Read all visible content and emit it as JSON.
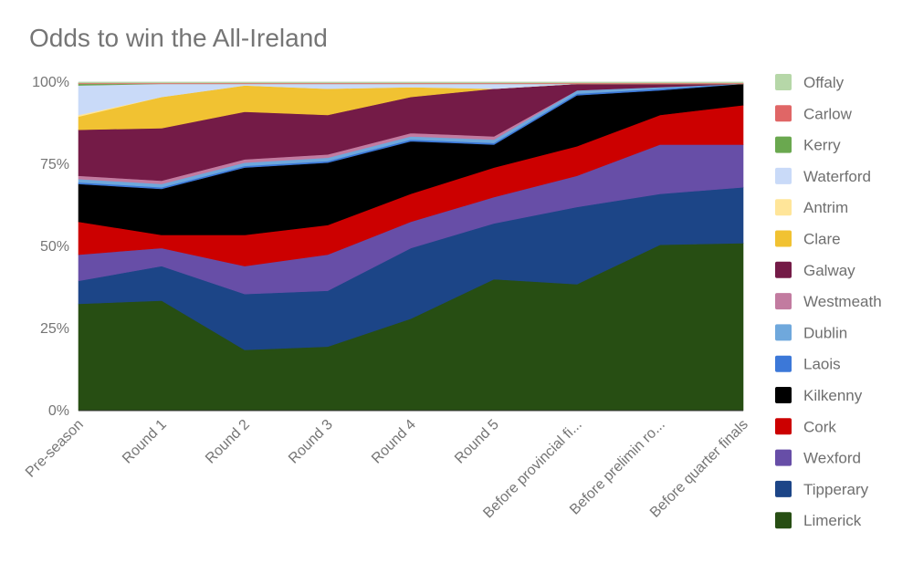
{
  "chart_data": {
    "type": "area",
    "stacked": "percent",
    "title": "Odds to win the All-Ireland",
    "xlabel": "",
    "ylabel": "",
    "categories": [
      "Pre-season",
      "Round 1",
      "Round 2",
      "Round 3",
      "Round 4",
      "Round 5",
      "Before provincial fi...",
      "Before prelimin ro...",
      "Before quarter finals"
    ],
    "y_ticks": [
      "0%",
      "25%",
      "50%",
      "75%",
      "100%"
    ],
    "ylim": [
      0,
      100
    ],
    "grid": true,
    "legend_position": "right",
    "series": [
      {
        "name": "Limerick",
        "color": "#274e13",
        "values": [
          32.5,
          33.5,
          18.5,
          19.5,
          28,
          40,
          38.5,
          50.5,
          51
        ]
      },
      {
        "name": "Tipperary",
        "color": "#1c4587",
        "values": [
          7,
          10.5,
          17,
          17,
          21.5,
          17,
          23.5,
          15.5,
          17
        ]
      },
      {
        "name": "Wexford",
        "color": "#674ea7",
        "values": [
          8,
          5.5,
          8.5,
          11,
          8,
          8,
          9.5,
          15,
          13
        ]
      },
      {
        "name": "Cork",
        "color": "#cc0000",
        "values": [
          10,
          4,
          9.5,
          9,
          8.5,
          9,
          9,
          9,
          12
        ]
      },
      {
        "name": "Kilkenny",
        "color": "#000000",
        "values": [
          11.5,
          14,
          20.5,
          19,
          16,
          7,
          15.5,
          7.5,
          6.5
        ]
      },
      {
        "name": "Laois",
        "color": "#3c78d8",
        "values": [
          0.5,
          0.5,
          0.5,
          0.5,
          0.5,
          0.5,
          0.5,
          0.5,
          0
        ]
      },
      {
        "name": "Dublin",
        "color": "#6fa8dc",
        "values": [
          1,
          1,
          1,
          1,
          1,
          1,
          1,
          0.5,
          0
        ]
      },
      {
        "name": "Westmeath",
        "color": "#c27ba0",
        "values": [
          1,
          1,
          1,
          1,
          1,
          1,
          0,
          0,
          0
        ]
      },
      {
        "name": "Galway",
        "color": "#741b47",
        "values": [
          14,
          16,
          14.5,
          12,
          11,
          14.5,
          2,
          1,
          0
        ]
      },
      {
        "name": "Clare",
        "color": "#f1c232",
        "values": [
          4,
          9.5,
          8,
          8,
          3,
          0,
          0,
          0,
          0
        ]
      },
      {
        "name": "Antrim",
        "color": "#ffe599",
        "values": [
          0.5,
          0,
          0,
          0,
          0,
          0,
          0,
          0,
          0
        ]
      },
      {
        "name": "Waterford",
        "color": "#c9daf8",
        "values": [
          9,
          4,
          0.5,
          1.5,
          1,
          1.5,
          0,
          0,
          0
        ]
      },
      {
        "name": "Kerry",
        "color": "#6aa84f",
        "values": [
          0.5,
          0,
          0,
          0,
          0,
          0,
          0,
          0,
          0
        ]
      },
      {
        "name": "Carlow",
        "color": "#e06666",
        "values": [
          0.25,
          0.25,
          0.25,
          0.25,
          0.25,
          0.25,
          0.25,
          0.25,
          0.25
        ]
      },
      {
        "name": "Offaly",
        "color": "#b6d7a8",
        "values": [
          0.25,
          0.25,
          0.25,
          0.25,
          0.25,
          0.25,
          0.25,
          0.25,
          0.25
        ]
      }
    ],
    "legend_order": [
      "Offaly",
      "Carlow",
      "Kerry",
      "Waterford",
      "Antrim",
      "Clare",
      "Galway",
      "Westmeath",
      "Dublin",
      "Laois",
      "Kilkenny",
      "Cork",
      "Wexford",
      "Tipperary",
      "Limerick"
    ]
  }
}
